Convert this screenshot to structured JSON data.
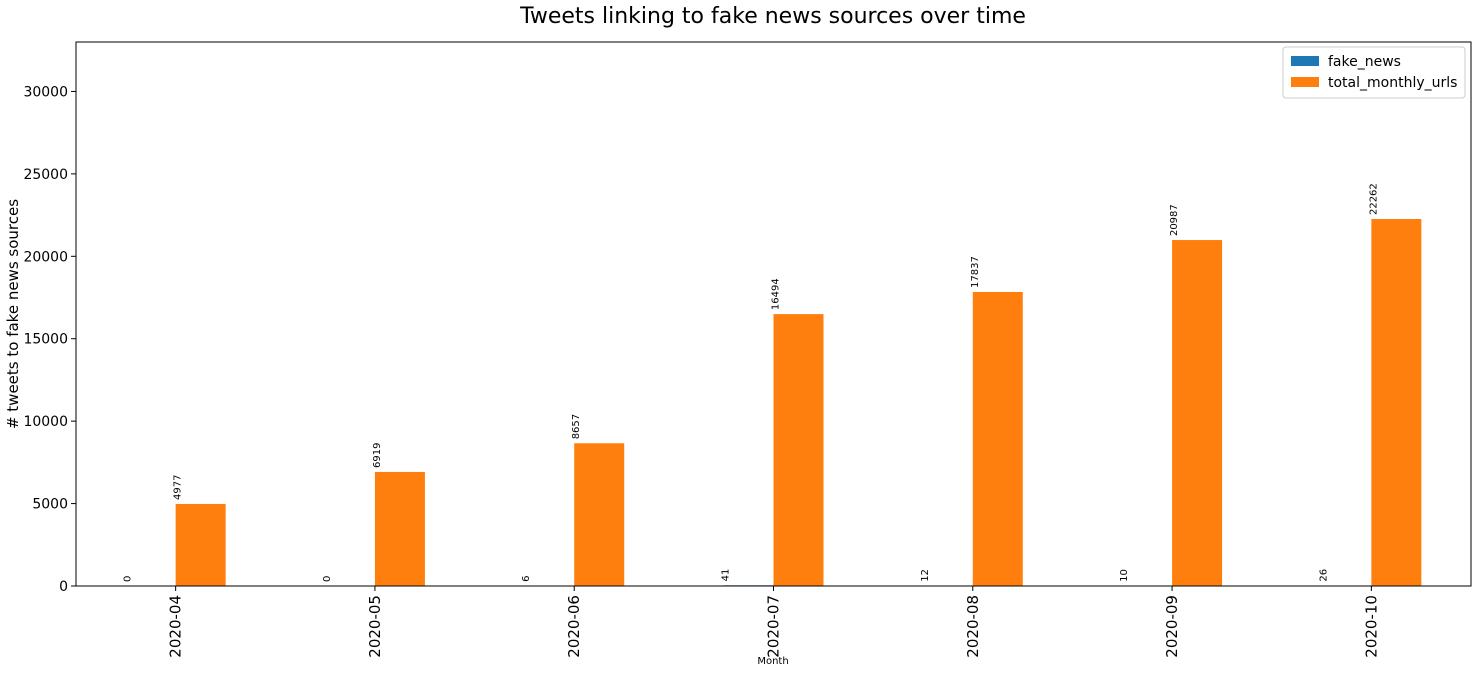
{
  "chart_data": {
    "type": "bar",
    "title": "Tweets linking to fake news sources over time",
    "xlabel": "Month",
    "ylabel": "# tweets to fake news sources",
    "categories": [
      "2020-04",
      "2020-05",
      "2020-06",
      "2020-07",
      "2020-08",
      "2020-09",
      "2020-10"
    ],
    "series": [
      {
        "name": "fake_news",
        "values": [
          0,
          0,
          6,
          41,
          12,
          10,
          26
        ],
        "color": "#1f77b4"
      },
      {
        "name": "total_monthly_urls",
        "values": [
          4977,
          6919,
          8657,
          16494,
          17837,
          20987,
          22262
        ],
        "color": "#ff7f0e"
      }
    ],
    "ylim": [
      0,
      33000
    ],
    "yticks": [
      0,
      5000,
      10000,
      15000,
      20000,
      25000,
      30000
    ],
    "grid": false,
    "legend_position": "top-right",
    "data_labels": true
  }
}
